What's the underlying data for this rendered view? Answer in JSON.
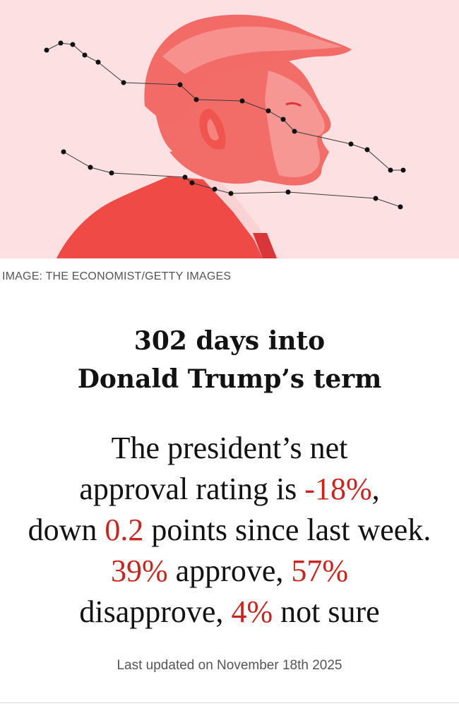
{
  "hero": {
    "icon": "trump-profile-illustration",
    "background_color": "#fde0e1",
    "figure_color": "#f15a56"
  },
  "credit": "IMAGE: THE ECONOMIST/GETTY IMAGES",
  "headline": {
    "line1": "302 days into",
    "line2": "Donald Trump’s term"
  },
  "summary": {
    "l1": "The president’s net",
    "l2_pre": "approval rating is ",
    "net_approval": "-18%",
    "l2_post": ",",
    "l3_pre": "down ",
    "change": "0.2",
    "l3_post": " points since last week.",
    "approve": "39%",
    "l4_mid": " approve, ",
    "disapprove": "57%",
    "l5_pre": "disapprove, ",
    "not_sure": "4%",
    "l5_post": " not sure",
    "accent_color": "#c8251e"
  },
  "updated": "Last updated on November 18th 2025"
}
